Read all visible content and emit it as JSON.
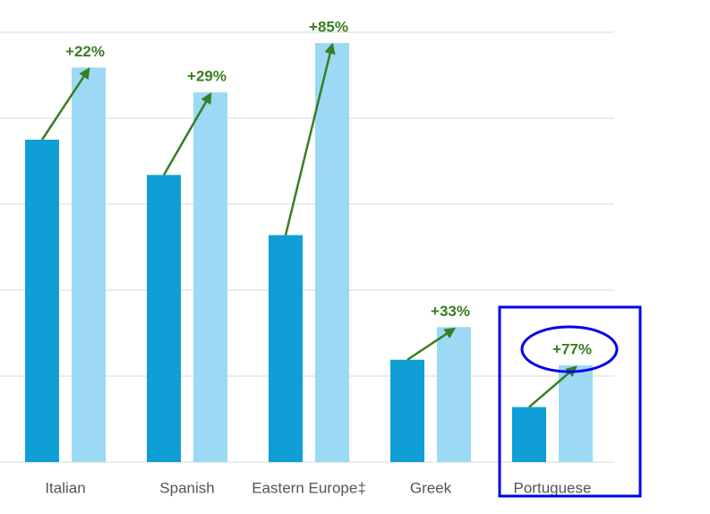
{
  "chart_data": {
    "type": "bar",
    "categories": [
      "Italian",
      "Spanish",
      "Eastern Europe‡",
      "Greek",
      "Portuguese"
    ],
    "series": [
      {
        "color": "#0f9ed5",
        "values": [
          3.75,
          3.34,
          2.64,
          1.19,
          0.64
        ]
      },
      {
        "color": "#9bd9f4",
        "values": [
          4.59,
          4.3,
          4.875,
          1.57,
          1.125
        ]
      }
    ],
    "annotations": [
      "+22%",
      "+29%",
      "+85%",
      "+33%",
      "+77%"
    ],
    "annotation_color": "#3a7d22",
    "ylim": [
      0,
      5
    ],
    "yticks": [
      0,
      1,
      2,
      3,
      4,
      5
    ],
    "grid": true,
    "ytick_labels": false
  }
}
